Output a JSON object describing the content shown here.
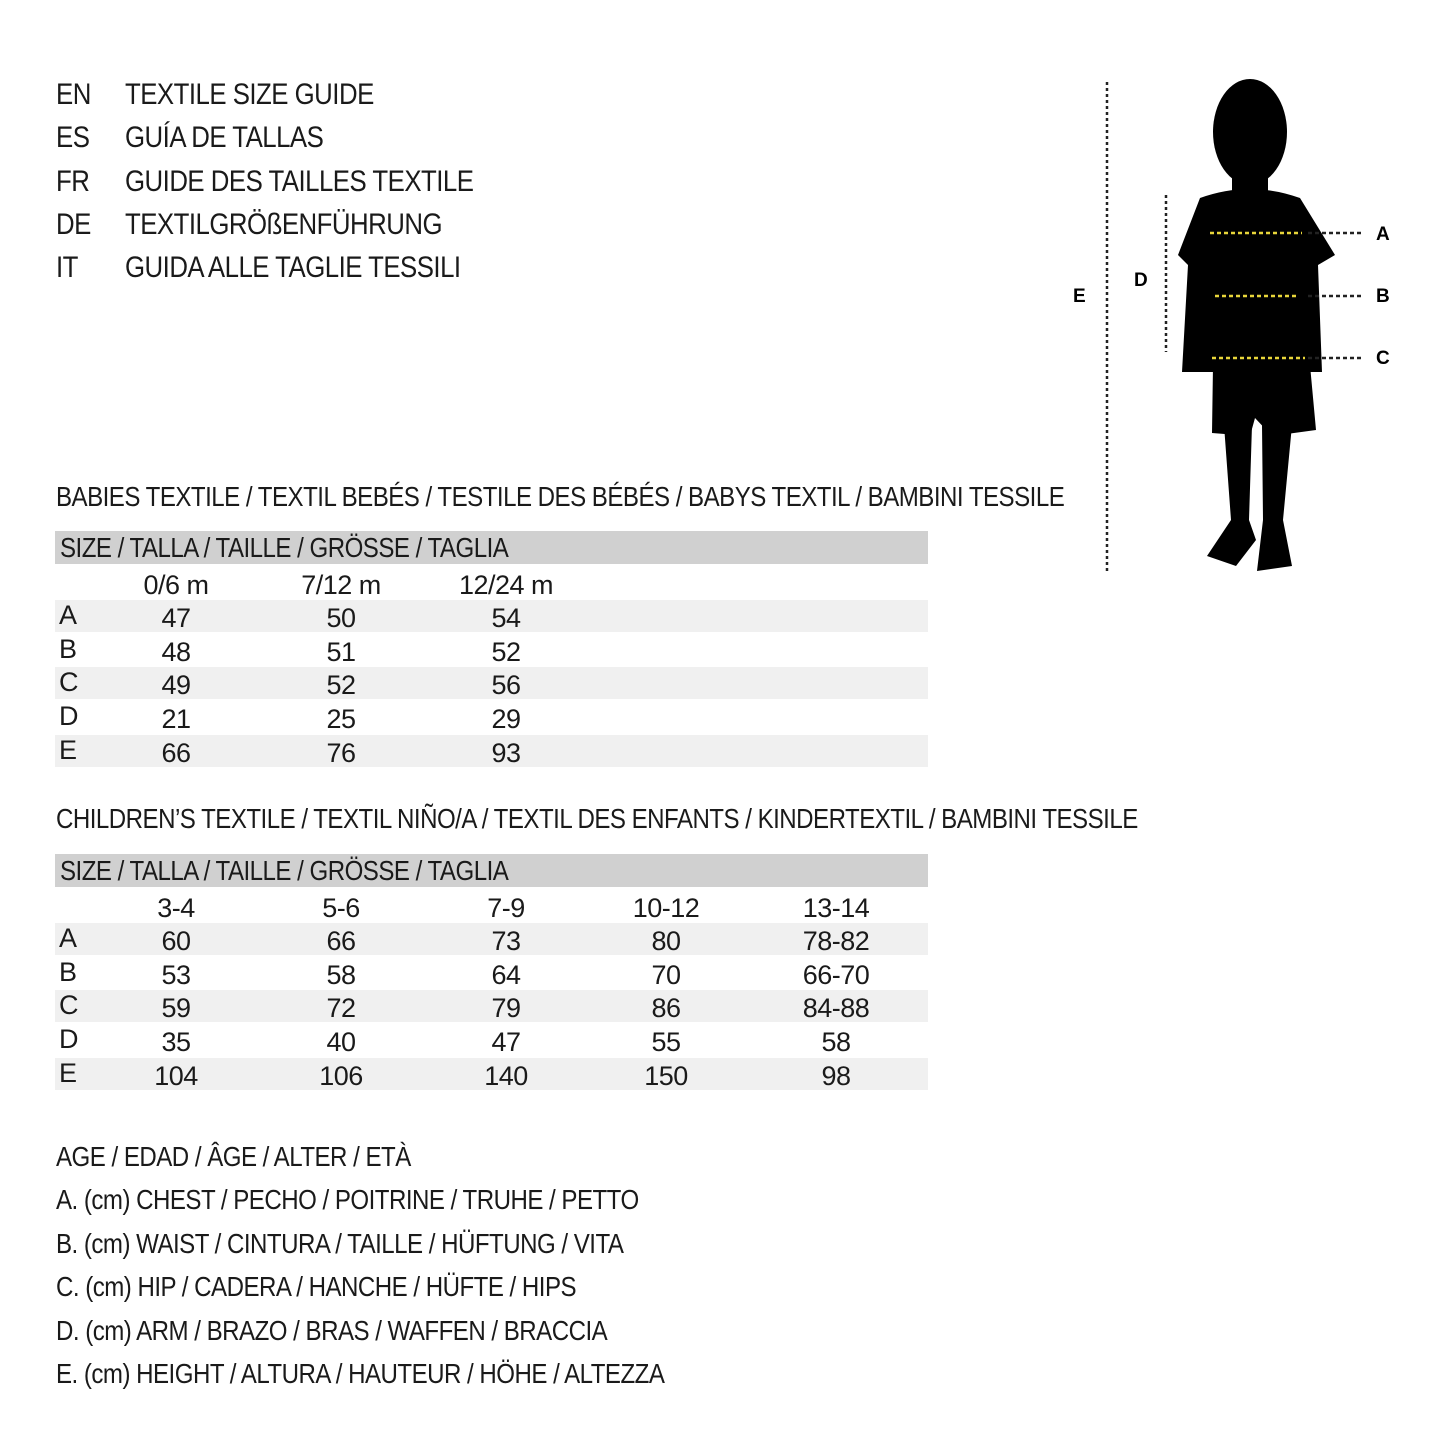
{
  "titles": [
    {
      "code": "EN",
      "text": "TEXTILE SIZE GUIDE"
    },
    {
      "code": "ES",
      "text": "GUÍA DE TALLAS"
    },
    {
      "code": "FR",
      "text": "GUIDE DES TAILLES TEXTILE"
    },
    {
      "code": "DE",
      "text": "TEXTILGRÖßENFÜHRUNG"
    },
    {
      "code": "IT",
      "text": "GUIDA ALLE TAGLIE TESSILI"
    }
  ],
  "figure": {
    "labels": {
      "E": "E",
      "D": "D",
      "A": "A",
      "B": "B",
      "C": "C"
    },
    "colors": {
      "silhouette": "#000000",
      "measure_line": "#e8d53a"
    }
  },
  "babies": {
    "heading": "BABIES TEXTILE / TEXTIL BEBÉS / TESTILE DES BÉBÉS / BABYS TEXTIL / BAMBINI TESSILE",
    "size_header": "SIZE / TALLA / TAILLE / GRÖSSE / TAGLIA",
    "columns": [
      "0/6 m",
      "7/12 m",
      "12/24 m"
    ],
    "rows": [
      {
        "label": "A",
        "values": [
          "47",
          "50",
          "54"
        ]
      },
      {
        "label": "B",
        "values": [
          "48",
          "51",
          "52"
        ]
      },
      {
        "label": "C",
        "values": [
          "49",
          "52",
          "56"
        ]
      },
      {
        "label": "D",
        "values": [
          "21",
          "25",
          "29"
        ]
      },
      {
        "label": "E",
        "values": [
          "66",
          "76",
          "93"
        ]
      }
    ]
  },
  "children": {
    "heading": "CHILDREN’S TEXTILE / TEXTIL NIÑO/A / TEXTIL DES ENFANTS / KINDERTEXTIL / BAMBINI TESSILE",
    "size_header": "SIZE / TALLA / TAILLE / GRÖSSE / TAGLIA",
    "columns": [
      "3-4",
      "5-6",
      "7-9",
      "10-12",
      "13-14"
    ],
    "rows": [
      {
        "label": "A",
        "values": [
          "60",
          "66",
          "73",
          "80",
          "78-82"
        ]
      },
      {
        "label": "B",
        "values": [
          "53",
          "58",
          "64",
          "70",
          "66-70"
        ]
      },
      {
        "label": "C",
        "values": [
          "59",
          "72",
          "79",
          "86",
          "84-88"
        ]
      },
      {
        "label": "D",
        "values": [
          "35",
          "40",
          "47",
          "55",
          "58"
        ]
      },
      {
        "label": "E",
        "values": [
          "104",
          "106",
          "140",
          "150",
          "98"
        ]
      }
    ]
  },
  "legend": [
    "AGE / EDAD / ÂGE / ALTER / ETÀ",
    "A. (cm) CHEST / PECHO / POITRINE / TRUHE / PETTO",
    "B. (cm) WAIST / CINTURA / TAILLE / HÜFTUNG / VITA",
    "C. (cm) HIP / CADERA / HANCHE / HÜFTE / HIPS",
    "D. (cm) ARM / BRAZO / BRAS / WAFFEN / BRACCIA",
    "E. (cm) HEIGHT / ALTURA / HAUTEUR / HÖHE / ALTEZZA"
  ]
}
